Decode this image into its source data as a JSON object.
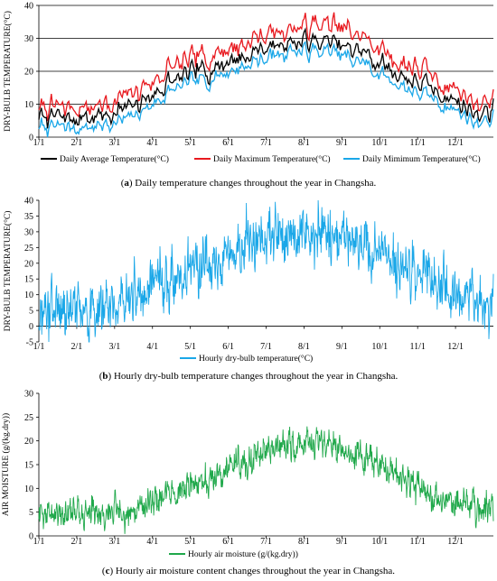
{
  "figure": {
    "captions": [
      {
        "label": "a",
        "text": " Daily temperature changes throughout the year in Changsha."
      },
      {
        "label": "b",
        "text": " Hourly dry-bulb temperature changes throughout the year in Changsha."
      },
      {
        "label": "c",
        "text": " Hourly air moisture content changes throughout the year in Changsha."
      }
    ]
  },
  "chart_data": [
    {
      "type": "line",
      "title": "",
      "xlabel": "",
      "ylabel": "DRY-BULB TEMPERATURE(°C)",
      "ylim": [
        0,
        40
      ],
      "yticks": [
        0,
        10,
        20,
        30,
        40
      ],
      "categories": [
        "1/1",
        "2/1",
        "3/1",
        "4/1",
        "5/1",
        "6/1",
        "7/1",
        "8/1",
        "9/1",
        "10/1",
        "11/1",
        "12/1"
      ],
      "x_unit": "month start",
      "grid": "horizontal",
      "legend_position": "bottom",
      "series": [
        {
          "name": "Daily Average Temperature(°C)",
          "color": "#000000",
          "values": [
            6,
            6,
            9,
            17,
            21,
            25,
            29,
            29,
            26,
            19,
            14,
            8
          ],
          "amplitude": 3
        },
        {
          "name": "Daily Maximum Temperature(°C)",
          "color": "#e8191f",
          "values": [
            9,
            9,
            13,
            21,
            25,
            29,
            33,
            34,
            31,
            23,
            18,
            11
          ],
          "amplitude": 3.5
        },
        {
          "name": "Daily Mimimum Temperature(°C)",
          "color": "#1aa7e8",
          "values": [
            3,
            3,
            6,
            14,
            18,
            22,
            26,
            26,
            23,
            16,
            11,
            5
          ],
          "amplitude": 2.5
        }
      ]
    },
    {
      "type": "line",
      "title": "",
      "xlabel": "",
      "ylabel": "DRY-BULB TEMPERATURE(°C)",
      "ylim": [
        -5,
        40
      ],
      "yticks": [
        -5,
        0,
        5,
        10,
        15,
        20,
        25,
        30,
        35,
        40
      ],
      "categories": [
        "1/1",
        "2/1",
        "3/1",
        "4/1",
        "5/1",
        "6/1",
        "7/1",
        "8/1",
        "9/1",
        "10/1",
        "11/1",
        "12/1"
      ],
      "x_unit": "month start",
      "grid": "none",
      "legend_position": "bottom",
      "series": [
        {
          "name": "Hourly dry-bulb temperature(°C)",
          "color": "#1aa7e8",
          "values": [
            6,
            5,
            9,
            15,
            20,
            25,
            28,
            29,
            26,
            20,
            14,
            8
          ],
          "amplitude": 6
        }
      ]
    },
    {
      "type": "line",
      "title": "",
      "xlabel": "",
      "ylabel": "AIR MOISTURE (g/(kg.dry))",
      "ylim": [
        0,
        30
      ],
      "yticks": [
        0,
        5,
        10,
        15,
        20,
        25,
        30
      ],
      "categories": [
        "1/1",
        "2/1",
        "3/1",
        "4/1",
        "5/1",
        "6/1",
        "7/1",
        "8/1",
        "9/1",
        "10/1",
        "11/1",
        "12/1"
      ],
      "x_unit": "month start",
      "grid": "none",
      "legend_position": "bottom",
      "series": [
        {
          "name": "Hourly air moisture (g/(kg.dry))",
          "color": "#1fa84a",
          "values": [
            5,
            4.5,
            5.5,
            9,
            12,
            16,
            19,
            20,
            17,
            12,
            8,
            6
          ],
          "amplitude": 2.2
        }
      ]
    }
  ]
}
